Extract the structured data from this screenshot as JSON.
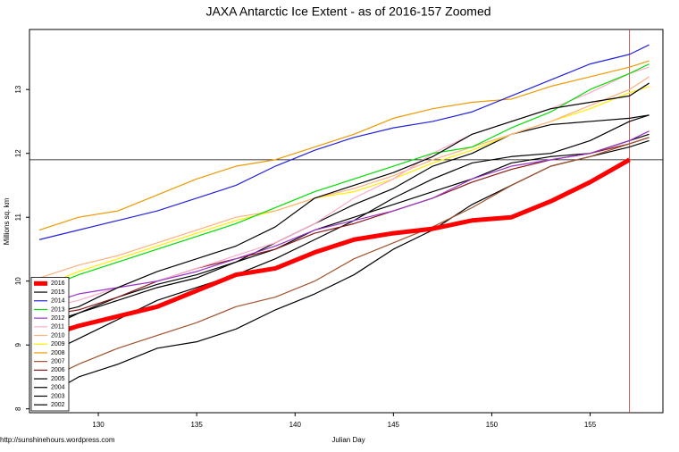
{
  "chart_data": {
    "type": "line",
    "title": "JAXA Antarctic Ice Extent - as of 2016-157 Zoomed",
    "x_label": "Julian Day",
    "y_label": "Millions sq. km",
    "footer": "http://sunshinehours.wordpress.com",
    "x": [
      127,
      129,
      131,
      133,
      135,
      137,
      139,
      141,
      143,
      145,
      147,
      149,
      151,
      153,
      155,
      157,
      158
    ],
    "xlim": [
      126.5,
      158.7
    ],
    "xticks": [
      130,
      135,
      140,
      145,
      150,
      155
    ],
    "ylim": [
      7.94,
      13.94
    ],
    "yticks": [
      8,
      9,
      10,
      11,
      12,
      13
    ],
    "hline": 11.9,
    "vline": 157,
    "legend": "bottom-left",
    "series": [
      {
        "name": "2016",
        "color": "#ff0000",
        "values": [
          9.1,
          9.3,
          9.45,
          9.6,
          9.85,
          10.1,
          10.2,
          10.45,
          10.65,
          10.75,
          10.82,
          10.95,
          11.0,
          11.25,
          11.55,
          11.9,
          null
        ]
      },
      {
        "name": "2015",
        "color": "#000000",
        "values": [
          9.45,
          9.6,
          9.9,
          10.15,
          10.35,
          10.55,
          10.85,
          11.3,
          11.5,
          11.7,
          11.95,
          12.3,
          12.5,
          12.7,
          12.8,
          12.9,
          13.1
        ]
      },
      {
        "name": "2014",
        "color": "#2222dd",
        "values": [
          10.65,
          10.8,
          10.95,
          11.1,
          11.3,
          11.5,
          11.8,
          12.05,
          12.25,
          12.4,
          12.5,
          12.65,
          12.9,
          13.15,
          13.4,
          13.55,
          13.7
        ]
      },
      {
        "name": "2013",
        "color": "#00dd00",
        "values": [
          9.85,
          10.1,
          10.3,
          10.5,
          10.7,
          10.9,
          11.15,
          11.4,
          11.6,
          11.8,
          12.0,
          12.1,
          12.4,
          12.65,
          13.0,
          13.25,
          13.4
        ]
      },
      {
        "name": "2012",
        "color": "#9933cc",
        "values": [
          9.6,
          9.8,
          9.9,
          10.0,
          10.15,
          10.35,
          10.55,
          10.8,
          10.95,
          11.1,
          11.3,
          11.6,
          11.8,
          11.9,
          12.0,
          12.2,
          12.35
        ]
      },
      {
        "name": "2011",
        "color": "#ffaacc",
        "values": [
          9.55,
          9.7,
          9.9,
          10.0,
          10.2,
          10.4,
          10.6,
          10.9,
          11.3,
          11.6,
          12.0,
          12.3,
          12.5,
          12.7,
          12.95,
          13.25,
          13.35
        ]
      },
      {
        "name": "2010",
        "color": "#ffb080",
        "values": [
          10.05,
          10.25,
          10.4,
          10.6,
          10.8,
          11.0,
          11.1,
          11.3,
          11.45,
          11.65,
          11.9,
          12.1,
          12.3,
          12.5,
          12.75,
          13.0,
          13.2
        ]
      },
      {
        "name": "2009",
        "color": "#ffee00",
        "values": [
          9.9,
          10.15,
          10.35,
          10.55,
          10.75,
          10.95,
          11.1,
          11.3,
          11.4,
          11.6,
          11.85,
          12.05,
          12.3,
          12.5,
          12.7,
          12.95,
          13.05
        ]
      },
      {
        "name": "2008",
        "color": "#ee9900",
        "values": [
          10.8,
          11.0,
          11.1,
          11.35,
          11.6,
          11.8,
          11.9,
          12.1,
          12.3,
          12.55,
          12.7,
          12.8,
          12.85,
          13.05,
          13.2,
          13.35,
          13.45
        ]
      },
      {
        "name": "2007",
        "color": "#a0522d",
        "values": [
          8.4,
          8.7,
          8.95,
          9.15,
          9.35,
          9.6,
          9.75,
          10.0,
          10.35,
          10.6,
          10.85,
          11.15,
          11.5,
          11.8,
          11.95,
          12.15,
          12.25
        ]
      },
      {
        "name": "2006",
        "color": "#8b1a1a",
        "values": [
          9.45,
          9.55,
          9.75,
          10.0,
          10.2,
          10.35,
          10.5,
          10.75,
          10.9,
          11.1,
          11.3,
          11.55,
          11.75,
          11.9,
          12.0,
          12.15,
          12.25
        ]
      },
      {
        "name": "2005",
        "color": "#000000",
        "values": [
          9.3,
          9.5,
          9.75,
          9.95,
          10.1,
          10.3,
          10.5,
          10.8,
          11.0,
          11.2,
          11.4,
          11.6,
          11.85,
          11.95,
          12.0,
          12.2,
          12.3
        ]
      },
      {
        "name": "2004",
        "color": "#000000",
        "values": [
          8.8,
          9.1,
          9.4,
          9.7,
          9.9,
          10.1,
          10.35,
          10.65,
          10.95,
          11.3,
          11.6,
          11.85,
          11.95,
          12.0,
          12.2,
          12.5,
          12.6
        ]
      },
      {
        "name": "2003",
        "color": "#000000",
        "values": [
          8.15,
          8.5,
          8.7,
          8.95,
          9.05,
          9.25,
          9.55,
          9.8,
          10.1,
          10.5,
          10.8,
          11.2,
          11.5,
          11.8,
          11.95,
          12.1,
          12.2
        ]
      },
      {
        "name": "2002",
        "color": "#000000",
        "values": [
          9.2,
          9.5,
          9.7,
          9.9,
          10.05,
          10.3,
          10.6,
          10.9,
          11.2,
          11.45,
          11.8,
          12.0,
          12.3,
          12.45,
          12.5,
          12.55,
          12.6
        ]
      }
    ]
  }
}
